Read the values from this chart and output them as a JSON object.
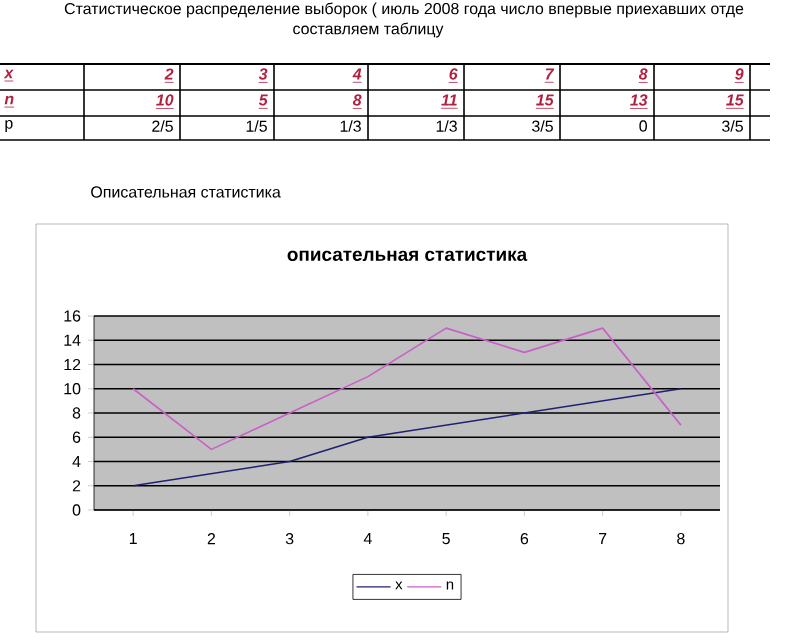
{
  "chart_data": {
    "type": "line",
    "title": "описательная статистика",
    "categories": [
      "1",
      "2",
      "3",
      "4",
      "5",
      "6",
      "7",
      "8"
    ],
    "series": [
      {
        "name": "x",
        "color": "#1f2070",
        "values": [
          2,
          3,
          4,
          6,
          7,
          8,
          9,
          10
        ]
      },
      {
        "name": "n",
        "color": "#c860c8",
        "values": [
          10,
          5,
          8,
          11,
          15,
          13,
          15,
          7
        ]
      }
    ],
    "ylim": [
      0,
      16
    ],
    "yticks": [
      0,
      2,
      4,
      6,
      8,
      10,
      12,
      14,
      16
    ],
    "grid": "y",
    "legend": "bottom",
    "marker": "none",
    "annotations": [
      "Статистическое распределение выборок ( июль 2008 года число впервые приехавших отде",
      "составляем таблицу",
      "x",
      "2",
      "3",
      "4",
      "6",
      "7",
      "8",
      "9",
      "n",
      "10",
      "5",
      "8",
      "11",
      "15",
      "13",
      "15",
      "p",
      "2/5",
      "1/5",
      "1/3",
      "1/3",
      "3/5",
      "0",
      "3/5",
      "Описательная статистика"
    ]
  }
}
